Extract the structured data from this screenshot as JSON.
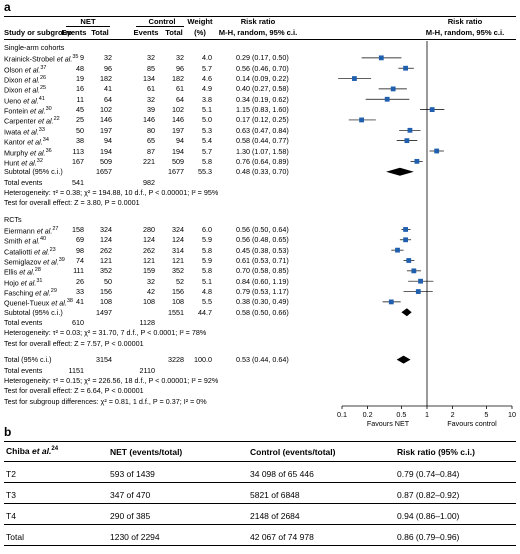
{
  "panel_a": {
    "label": "a",
    "headers": {
      "study": "Study or subgroup",
      "net": "NET",
      "control": "Control",
      "events": "Events",
      "total": "Total",
      "weight": "Weight",
      "weight_unit": "(%)",
      "rr_left": "Risk ratio",
      "rr_left_sub": "M-H, random, 95% c.i.",
      "rr_right": "Risk ratio",
      "rr_right_sub": "M-H, random, 95% c.i."
    },
    "groups": [
      {
        "title": "Single-arm cohorts",
        "studies": [
          {
            "name": "Krainick-Strobel",
            "etal": "et al.",
            "ref": "35",
            "ne": "9",
            "nt": "32",
            "ce": "32",
            "ct": "32",
            "w": "4.0",
            "ci": "0.29 (0.17, 0.50)",
            "rr": 0.29,
            "lo": 0.17,
            "hi": 0.5
          },
          {
            "name": "Olson",
            "etal": "et al.",
            "ref": "37",
            "ne": "48",
            "nt": "96",
            "ce": "85",
            "ct": "96",
            "w": "5.7",
            "ci": "0.56 (0.46, 0.70)",
            "rr": 0.56,
            "lo": 0.46,
            "hi": 0.7
          },
          {
            "name": "Dixon",
            "etal": "et al.",
            "ref": "26",
            "ne": "19",
            "nt": "182",
            "ce": "134",
            "ct": "182",
            "w": "4.6",
            "ci": "0.14 (0.09, 0.22)",
            "rr": 0.14,
            "lo": 0.09,
            "hi": 0.22
          },
          {
            "name": "Dixon",
            "etal": "et al.",
            "ref": "25",
            "ne": "16",
            "nt": "41",
            "ce": "61",
            "ct": "61",
            "w": "4.9",
            "ci": "0.40 (0.27, 0.58)",
            "rr": 0.4,
            "lo": 0.27,
            "hi": 0.58
          },
          {
            "name": "Ueno",
            "etal": "et al.",
            "ref": "41",
            "ne": "11",
            "nt": "64",
            "ce": "32",
            "ct": "64",
            "w": "3.8",
            "ci": "0.34 (0.19, 0.62)",
            "rr": 0.34,
            "lo": 0.19,
            "hi": 0.62
          },
          {
            "name": "Fontein",
            "etal": "et al.",
            "ref": "30",
            "ne": "45",
            "nt": "102",
            "ce": "39",
            "ct": "102",
            "w": "5.1",
            "ci": "1.15 (0.83, 1.60)",
            "rr": 1.15,
            "lo": 0.83,
            "hi": 1.6
          },
          {
            "name": "Carpenter",
            "etal": "et al.",
            "ref": "22",
            "ne": "25",
            "nt": "146",
            "ce": "146",
            "ct": "146",
            "w": "5.0",
            "ci": "0.17 (0.12, 0.25)",
            "rr": 0.17,
            "lo": 0.12,
            "hi": 0.25
          },
          {
            "name": "Iwata",
            "etal": "et al.",
            "ref": "33",
            "ne": "50",
            "nt": "197",
            "ce": "80",
            "ct": "197",
            "w": "5.3",
            "ci": "0.63 (0.47, 0.84)",
            "rr": 0.63,
            "lo": 0.47,
            "hi": 0.84
          },
          {
            "name": "Kantor",
            "etal": "et al.",
            "ref": "34",
            "ne": "38",
            "nt": "94",
            "ce": "65",
            "ct": "94",
            "w": "5.4",
            "ci": "0.58 (0.44, 0.77)",
            "rr": 0.58,
            "lo": 0.44,
            "hi": 0.77
          },
          {
            "name": "Murphy",
            "etal": "et al.",
            "ref": "36",
            "ne": "113",
            "nt": "194",
            "ce": "87",
            "ct": "194",
            "w": "5.7",
            "ci": "1.30 (1.07, 1.58)",
            "rr": 1.3,
            "lo": 1.07,
            "hi": 1.58
          },
          {
            "name": "Hunt",
            "etal": "et al.",
            "ref": "32",
            "ne": "167",
            "nt": "509",
            "ce": "221",
            "ct": "509",
            "w": "5.8",
            "ci": "0.76 (0.64, 0.89)",
            "rr": 0.76,
            "lo": 0.64,
            "hi": 0.89
          }
        ],
        "subtotal": {
          "label": "Subtotal (95% c.i.)",
          "nt": "1657",
          "ct": "1677",
          "w": "55.3",
          "ci": "0.48 (0.33, 0.70)",
          "rr": 0.48,
          "lo": 0.33,
          "hi": 0.7
        },
        "total_events": {
          "label": "Total events",
          "ne": "541",
          "ce": "982"
        },
        "heterogeneity": "Heterogeneity: τ² = 0.38; χ² = 194.88, 10 d.f., P < 0.00001; I² = 95%",
        "overall": "Test for overall effect: Z = 3.80, P = 0.0001"
      },
      {
        "title": "RCTs",
        "studies": [
          {
            "name": "Eiermann",
            "etal": "et al.",
            "ref": "27",
            "ne": "158",
            "nt": "324",
            "ce": "280",
            "ct": "324",
            "w": "6.0",
            "ci": "0.56 (0.50, 0.64)",
            "rr": 0.56,
            "lo": 0.5,
            "hi": 0.64
          },
          {
            "name": "Smith",
            "etal": "et al.",
            "ref": "40",
            "ne": "69",
            "nt": "124",
            "ce": "124",
            "ct": "124",
            "w": "5.9",
            "ci": "0.56 (0.48, 0.65)",
            "rr": 0.56,
            "lo": 0.48,
            "hi": 0.65
          },
          {
            "name": "Cataliotti",
            "etal": "et al.",
            "ref": "23",
            "ne": "98",
            "nt": "262",
            "ce": "262",
            "ct": "314",
            "w": "5.8",
            "ci": "0.45 (0.38, 0.53)",
            "rr": 0.45,
            "lo": 0.38,
            "hi": 0.53
          },
          {
            "name": "Semiglazov",
            "etal": "et al.",
            "ref": "39",
            "ne": "74",
            "nt": "121",
            "ce": "121",
            "ct": "121",
            "w": "5.9",
            "ci": "0.61 (0.53, 0.71)",
            "rr": 0.61,
            "lo": 0.53,
            "hi": 0.71
          },
          {
            "name": "Ellis",
            "etal": "et al.",
            "ref": "28",
            "ne": "111",
            "nt": "352",
            "ce": "159",
            "ct": "352",
            "w": "5.8",
            "ci": "0.70 (0.58, 0.85)",
            "rr": 0.7,
            "lo": 0.58,
            "hi": 0.85
          },
          {
            "name": "Hojo",
            "etal": "et al.",
            "ref": "31",
            "ne": "26",
            "nt": "50",
            "ce": "32",
            "ct": "52",
            "w": "5.1",
            "ci": "0.84 (0.60, 1.19)",
            "rr": 0.84,
            "lo": 0.6,
            "hi": 1.19
          },
          {
            "name": "Fasching",
            "etal": "et al.",
            "ref": "29",
            "ne": "33",
            "nt": "156",
            "ce": "42",
            "ct": "156",
            "w": "4.8",
            "ci": "0.79 (0.53, 1.17)",
            "rr": 0.79,
            "lo": 0.53,
            "hi": 1.17
          },
          {
            "name": "Quenel-Tueux",
            "etal": "et al.",
            "ref": "38",
            "ne": "41",
            "nt": "108",
            "ce": "108",
            "ct": "108",
            "w": "5.5",
            "ci": "0.38 (0.30, 0.49)",
            "rr": 0.38,
            "lo": 0.3,
            "hi": 0.49
          }
        ],
        "subtotal": {
          "label": "Subtotal (95% c.i.)",
          "nt": "1497",
          "ct": "1551",
          "w": "44.7",
          "ci": "0.58 (0.50, 0.66)",
          "rr": 0.58,
          "lo": 0.5,
          "hi": 0.66
        },
        "total_events": {
          "label": "Total events",
          "ne": "610",
          "ce": "1128"
        },
        "heterogeneity": "Heterogeneity: τ² = 0.03; χ² = 31.70, 7 d.f., P < 0.0001; I² = 78%",
        "overall": "Test for overall effect: Z = 7.57, P < 0.00001"
      }
    ],
    "total": {
      "label": "Total (95% c.i.)",
      "nt": "3154",
      "ct": "3228",
      "w": "100.0",
      "ci": "0.53 (0.44, 0.64)",
      "rr": 0.53,
      "lo": 0.44,
      "hi": 0.64
    },
    "total_events": {
      "label": "Total events",
      "ne": "1151",
      "ce": "2110"
    },
    "heterogeneity": "Heterogeneity: τ² = 0.15; χ² = 226.56, 18 d.f., P < 0.00001; I² = 92%",
    "overall": "Test for overall effect: Z = 6.64, P < 0.00001",
    "subgroup": "Test for subgroup differences: χ² = 0.81, 1 d.f., P = 0.37; I² = 0%",
    "axis": {
      "ticks": [
        0.1,
        0.2,
        0.5,
        1,
        2,
        5,
        10
      ],
      "tick_labels": [
        "0.1",
        "0.2",
        "0.5",
        "1",
        "2",
        "5",
        "10"
      ],
      "scale": "log",
      "xlim": [
        0.1,
        10
      ],
      "favours_left": "Favours NET",
      "favours_right": "Favours control"
    },
    "colors": {
      "point": "#1f5fae",
      "diamond": "#000000",
      "line": "#000000"
    }
  },
  "panel_b": {
    "label": "b",
    "headers": {
      "study": "Chiba",
      "etal": "et al.",
      "ref": "24",
      "net": "NET (events/total)",
      "control": "Control (events/total)",
      "rr": "Risk ratio (95% c.i.)"
    },
    "rows": [
      {
        "label": "T2",
        "net": "593 of 1439",
        "control": "34 098 of 65 446",
        "rr": "0.79 (0.74–0.84)"
      },
      {
        "label": "T3",
        "net": "347 of 470",
        "control": "5821 of 6848",
        "rr": "0.87 (0.82–0.92)"
      },
      {
        "label": "T4",
        "net": "290 of 385",
        "control": "2148 of 2684",
        "rr": "0.94 (0.86–1.00)"
      },
      {
        "label": "Total",
        "net": "1230 of 2294",
        "control": "42 067 of 74 978",
        "rr": "0.86 (0.79–0.96)"
      }
    ]
  },
  "chart_data": {
    "type": "forest",
    "xscale": "log",
    "xlim": [
      0.1,
      10
    ],
    "ticks": [
      0.1,
      0.2,
      0.5,
      1,
      2,
      5,
      10
    ],
    "reference_line": 1,
    "xlabel_left": "Favours NET",
    "xlabel_right": "Favours control",
    "series": [
      {
        "name": "Single-arm cohorts",
        "points": [
          {
            "study": "Krainick-Strobel et al.",
            "rr": 0.29,
            "lo": 0.17,
            "hi": 0.5,
            "weight": 4.0
          },
          {
            "study": "Olson et al.",
            "rr": 0.56,
            "lo": 0.46,
            "hi": 0.7,
            "weight": 5.7
          },
          {
            "study": "Dixon et al. (26)",
            "rr": 0.14,
            "lo": 0.09,
            "hi": 0.22,
            "weight": 4.6
          },
          {
            "study": "Dixon et al. (25)",
            "rr": 0.4,
            "lo": 0.27,
            "hi": 0.58,
            "weight": 4.9
          },
          {
            "study": "Ueno et al.",
            "rr": 0.34,
            "lo": 0.19,
            "hi": 0.62,
            "weight": 3.8
          },
          {
            "study": "Fontein et al.",
            "rr": 1.15,
            "lo": 0.83,
            "hi": 1.6,
            "weight": 5.1
          },
          {
            "study": "Carpenter et al.",
            "rr": 0.17,
            "lo": 0.12,
            "hi": 0.25,
            "weight": 5.0
          },
          {
            "study": "Iwata et al.",
            "rr": 0.63,
            "lo": 0.47,
            "hi": 0.84,
            "weight": 5.3
          },
          {
            "study": "Kantor et al.",
            "rr": 0.58,
            "lo": 0.44,
            "hi": 0.77,
            "weight": 5.4
          },
          {
            "study": "Murphy et al.",
            "rr": 1.3,
            "lo": 1.07,
            "hi": 1.58,
            "weight": 5.7
          },
          {
            "study": "Hunt et al.",
            "rr": 0.76,
            "lo": 0.64,
            "hi": 0.89,
            "weight": 5.8
          }
        ],
        "subtotal": {
          "rr": 0.48,
          "lo": 0.33,
          "hi": 0.7
        }
      },
      {
        "name": "RCTs",
        "points": [
          {
            "study": "Eiermann et al.",
            "rr": 0.56,
            "lo": 0.5,
            "hi": 0.64,
            "weight": 6.0
          },
          {
            "study": "Smith et al.",
            "rr": 0.56,
            "lo": 0.48,
            "hi": 0.65,
            "weight": 5.9
          },
          {
            "study": "Cataliotti et al.",
            "rr": 0.45,
            "lo": 0.38,
            "hi": 0.53,
            "weight": 5.8
          },
          {
            "study": "Semiglazov et al.",
            "rr": 0.61,
            "lo": 0.53,
            "hi": 0.71,
            "weight": 5.9
          },
          {
            "study": "Ellis et al.",
            "rr": 0.7,
            "lo": 0.58,
            "hi": 0.85,
            "weight": 5.8
          },
          {
            "study": "Hojo et al.",
            "rr": 0.84,
            "lo": 0.6,
            "hi": 1.19,
            "weight": 5.1
          },
          {
            "study": "Fasching et al.",
            "rr": 0.79,
            "lo": 0.53,
            "hi": 1.17,
            "weight": 4.8
          },
          {
            "study": "Quenel-Tueux et al.",
            "rr": 0.38,
            "lo": 0.3,
            "hi": 0.49,
            "weight": 5.5
          }
        ],
        "subtotal": {
          "rr": 0.58,
          "lo": 0.5,
          "hi": 0.66
        }
      }
    ],
    "total": {
      "rr": 0.53,
      "lo": 0.44,
      "hi": 0.64
    }
  }
}
